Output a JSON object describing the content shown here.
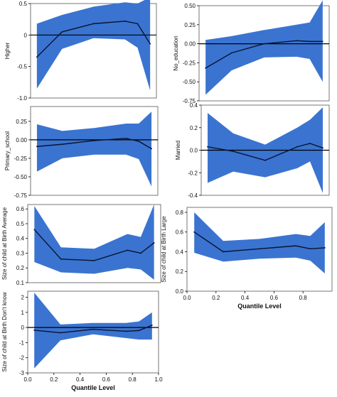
{
  "colors": {
    "band": "#3a74d0",
    "line": "#0b1330",
    "zero": "#000000",
    "axis": "#000000",
    "frame": "#555555"
  },
  "chart_data": [
    {
      "type": "area",
      "ylabel": "Higher",
      "xlim": [
        0,
        1
      ],
      "ylim": [
        -1.0,
        0.5
      ],
      "xticks": [],
      "yticks": [
        -1.0,
        -0.5,
        0,
        0.5
      ],
      "ytick_labels": [
        "-1.0",
        "-0.5",
        "0",
        "0.5"
      ],
      "x": [
        0.05,
        0.25,
        0.5,
        0.75,
        0.85,
        0.95
      ],
      "estimate": [
        -0.35,
        0.05,
        0.18,
        0.22,
        0.18,
        -0.14
      ],
      "lower": [
        -0.85,
        -0.22,
        -0.05,
        -0.07,
        -0.2,
        -0.88
      ],
      "upper": [
        0.18,
        0.32,
        0.45,
        0.52,
        0.5,
        0.6
      ]
    },
    {
      "type": "area",
      "ylabel": "No_education",
      "xlim": [
        0,
        1
      ],
      "ylim": [
        -0.75,
        0.5
      ],
      "xticks": [],
      "yticks": [
        -0.75,
        -0.5,
        -0.25,
        0,
        0.25,
        0.5
      ],
      "ytick_labels": [
        "-0.75",
        "-0.50",
        "-0.25",
        "0.00",
        "0.25",
        "0.50"
      ],
      "x": [
        0.05,
        0.25,
        0.5,
        0.75,
        0.85,
        0.95
      ],
      "estimate": [
        -0.32,
        -0.12,
        0.0,
        0.04,
        0.03,
        0.03
      ],
      "lower": [
        -0.67,
        -0.35,
        -0.18,
        -0.17,
        -0.2,
        -0.5
      ],
      "upper": [
        0.05,
        0.1,
        0.18,
        0.25,
        0.28,
        0.57
      ]
    },
    {
      "type": "area",
      "ylabel": "Primary_school",
      "xlim": [
        0,
        1
      ],
      "ylim": [
        -0.75,
        0.45
      ],
      "xticks": [],
      "yticks": [
        -0.75,
        -0.5,
        -0.25,
        0,
        0.25
      ],
      "ytick_labels": [
        "-0.75",
        "-0.50",
        "-0.25",
        "0.00",
        "0.25"
      ],
      "x": [
        0.05,
        0.25,
        0.5,
        0.75,
        0.85,
        0.95
      ],
      "estimate": [
        -0.09,
        -0.06,
        -0.01,
        0.02,
        -0.02,
        -0.12
      ],
      "lower": [
        -0.43,
        -0.25,
        -0.2,
        -0.2,
        -0.26,
        -0.63
      ],
      "upper": [
        0.21,
        0.12,
        0.16,
        0.22,
        0.22,
        0.38
      ]
    },
    {
      "type": "area",
      "ylabel": "Married",
      "xlim": [
        0,
        1
      ],
      "ylim": [
        -0.4,
        0.4
      ],
      "xticks": [],
      "yticks": [
        -0.4,
        -0.2,
        0,
        0.2,
        0.4
      ],
      "ytick_labels": [
        "-0.4",
        "-0.2",
        "0.0",
        "0.2",
        "0.4"
      ],
      "x": [
        0.05,
        0.25,
        0.5,
        0.75,
        0.85,
        0.95
      ],
      "estimate": [
        0.03,
        -0.01,
        -0.09,
        0.03,
        0.06,
        0.02
      ],
      "lower": [
        -0.29,
        -0.19,
        -0.24,
        -0.16,
        -0.1,
        -0.38
      ],
      "upper": [
        0.33,
        0.15,
        0.05,
        0.2,
        0.27,
        0.38
      ]
    },
    {
      "type": "area",
      "ylabel": "Size of child at Birth Average",
      "xlim": [
        0,
        1
      ],
      "ylim": [
        0.1,
        0.63
      ],
      "xticks": [],
      "yticks": [
        0.1,
        0.2,
        0.3,
        0.4,
        0.5,
        0.6
      ],
      "ytick_labels": [
        "0.1",
        "0.2",
        "0.3",
        "0.4",
        "0.5",
        "0.6"
      ],
      "x": [
        0.05,
        0.25,
        0.5,
        0.75,
        0.85,
        0.95
      ],
      "estimate": [
        0.46,
        0.26,
        0.25,
        0.32,
        0.3,
        0.37
      ],
      "lower": [
        0.24,
        0.17,
        0.16,
        0.2,
        0.19,
        0.12
      ],
      "upper": [
        0.62,
        0.34,
        0.33,
        0.43,
        0.41,
        0.63
      ]
    },
    {
      "type": "area",
      "ylabel": "Size of child at Birth Large",
      "xlabel": "Quantile Level",
      "xlim": [
        0,
        1
      ],
      "ylim": [
        0.0,
        0.85
      ],
      "xticks": [
        0,
        0.2,
        0.4,
        0.6,
        0.8
      ],
      "xtick_labels": [
        "0.0",
        "0.2",
        "0.4",
        "0.6",
        "0.8"
      ],
      "yticks": [
        0,
        0.2,
        0.4,
        0.6,
        0.8
      ],
      "ytick_labels": [
        "0.0",
        "0.2",
        "0.4",
        "0.6",
        "0.8"
      ],
      "x": [
        0.05,
        0.25,
        0.5,
        0.75,
        0.85,
        0.95
      ],
      "estimate": [
        0.6,
        0.4,
        0.43,
        0.46,
        0.43,
        0.44
      ],
      "lower": [
        0.39,
        0.3,
        0.33,
        0.34,
        0.31,
        0.18
      ],
      "upper": [
        0.8,
        0.51,
        0.53,
        0.58,
        0.56,
        0.7
      ]
    },
    {
      "type": "area",
      "ylabel": "Size of child at Birth Don't know",
      "xlabel": "Quantile Level",
      "xlim": [
        0,
        1
      ],
      "ylim": [
        -3,
        2.4
      ],
      "xticks": [
        0,
        0.2,
        0.4,
        0.6,
        0.8,
        1.0
      ],
      "xtick_labels": [
        "0.0",
        "0.2",
        "0.4",
        "0.6",
        "0.8",
        "1.0"
      ],
      "yticks": [
        -3,
        -2,
        -1,
        0,
        1,
        2
      ],
      "ytick_labels": [
        "-3",
        "-2",
        "-1",
        "0",
        "1",
        "2"
      ],
      "x": [
        0.05,
        0.25,
        0.5,
        0.75,
        0.85,
        0.95
      ],
      "estimate": [
        -0.18,
        -0.35,
        -0.12,
        -0.25,
        -0.2,
        0.15
      ],
      "lower": [
        -2.7,
        -0.85,
        -0.45,
        -0.7,
        -0.8,
        -0.8
      ],
      "upper": [
        2.3,
        0.2,
        0.3,
        0.3,
        0.4,
        1.0
      ]
    }
  ]
}
